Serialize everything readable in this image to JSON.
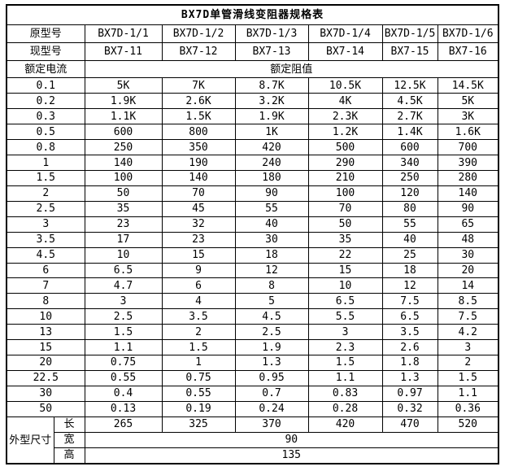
{
  "title": "BX7D单管滑线变阻器规格表",
  "header": {
    "original_model_label": "原型号",
    "original_models": [
      "BX7D-1/1",
      "BX7D-1/2",
      "BX7D-1/3",
      "BX7D-1/4",
      "BX7D-1/5",
      "BX7D-1/6"
    ],
    "current_model_label": "现型号",
    "current_models": [
      "BX7-11",
      "BX7-12",
      "BX7-13",
      "BX7-14",
      "BX7-15",
      "BX7-16"
    ],
    "rated_current_label": "额定电流",
    "rated_resistance_label": "额定阻值"
  },
  "table": {
    "rows": [
      {
        "current": "0.1",
        "values": [
          "5K",
          "7K",
          "8.7K",
          "10.5K",
          "12.5K",
          "14.5K"
        ]
      },
      {
        "current": "0.2",
        "values": [
          "1.9K",
          "2.6K",
          "3.2K",
          "4K",
          "4.5K",
          "5K"
        ]
      },
      {
        "current": "0.3",
        "values": [
          "1.1K",
          "1.5K",
          "1.9K",
          "2.3K",
          "2.7K",
          "3K"
        ]
      },
      {
        "current": "0.5",
        "values": [
          "600",
          "800",
          "1K",
          "1.2K",
          "1.4K",
          "1.6K"
        ]
      },
      {
        "current": "0.8",
        "values": [
          "250",
          "350",
          "420",
          "500",
          "600",
          "700"
        ]
      },
      {
        "current": "1",
        "values": [
          "140",
          "190",
          "240",
          "290",
          "340",
          "390"
        ]
      },
      {
        "current": "1.5",
        "values": [
          "100",
          "140",
          "180",
          "210",
          "250",
          "280"
        ]
      },
      {
        "current": "2",
        "values": [
          "50",
          "70",
          "90",
          "100",
          "120",
          "140"
        ]
      },
      {
        "current": "2.5",
        "values": [
          "35",
          "45",
          "55",
          "70",
          "80",
          "90"
        ]
      },
      {
        "current": "3",
        "values": [
          "23",
          "32",
          "40",
          "50",
          "55",
          "65"
        ]
      },
      {
        "current": "3.5",
        "values": [
          "17",
          "23",
          "30",
          "35",
          "40",
          "48"
        ]
      },
      {
        "current": "4.5",
        "values": [
          "10",
          "15",
          "18",
          "22",
          "25",
          "30"
        ]
      },
      {
        "current": "6",
        "values": [
          "6.5",
          "9",
          "12",
          "15",
          "18",
          "20"
        ]
      },
      {
        "current": "7",
        "values": [
          "4.7",
          "6",
          "8",
          "10",
          "12",
          "14"
        ]
      },
      {
        "current": "8",
        "values": [
          "3",
          "4",
          "5",
          "6.5",
          "7.5",
          "8.5"
        ]
      },
      {
        "current": "10",
        "values": [
          "2.5",
          "3.5",
          "4.5",
          "5.5",
          "6.5",
          "7.5"
        ]
      },
      {
        "current": "13",
        "values": [
          "1.5",
          "2",
          "2.5",
          "3",
          "3.5",
          "4.2"
        ]
      },
      {
        "current": "15",
        "values": [
          "1.1",
          "1.5",
          "1.9",
          "2.3",
          "2.6",
          "3"
        ]
      },
      {
        "current": "20",
        "values": [
          "0.75",
          "1",
          "1.3",
          "1.5",
          "1.8",
          "2"
        ]
      },
      {
        "current": "22.5",
        "values": [
          "0.55",
          "0.75",
          "0.95",
          "1.1",
          "1.3",
          "1.5"
        ]
      },
      {
        "current": "30",
        "values": [
          "0.4",
          "0.55",
          "0.7",
          "0.83",
          "0.97",
          "1.1"
        ]
      },
      {
        "current": "50",
        "values": [
          "0.13",
          "0.19",
          "0.24",
          "0.28",
          "0.32",
          "0.36"
        ]
      }
    ],
    "dimensions": {
      "label": "外型尺寸",
      "length_label": "长",
      "length_values": [
        "265",
        "325",
        "370",
        "420",
        "470",
        "520"
      ],
      "width_label": "宽",
      "width_value": "90",
      "height_label": "高",
      "height_value": "135"
    }
  },
  "colors": {
    "border": "#000000",
    "text": "#000000",
    "background": "#ffffff"
  }
}
